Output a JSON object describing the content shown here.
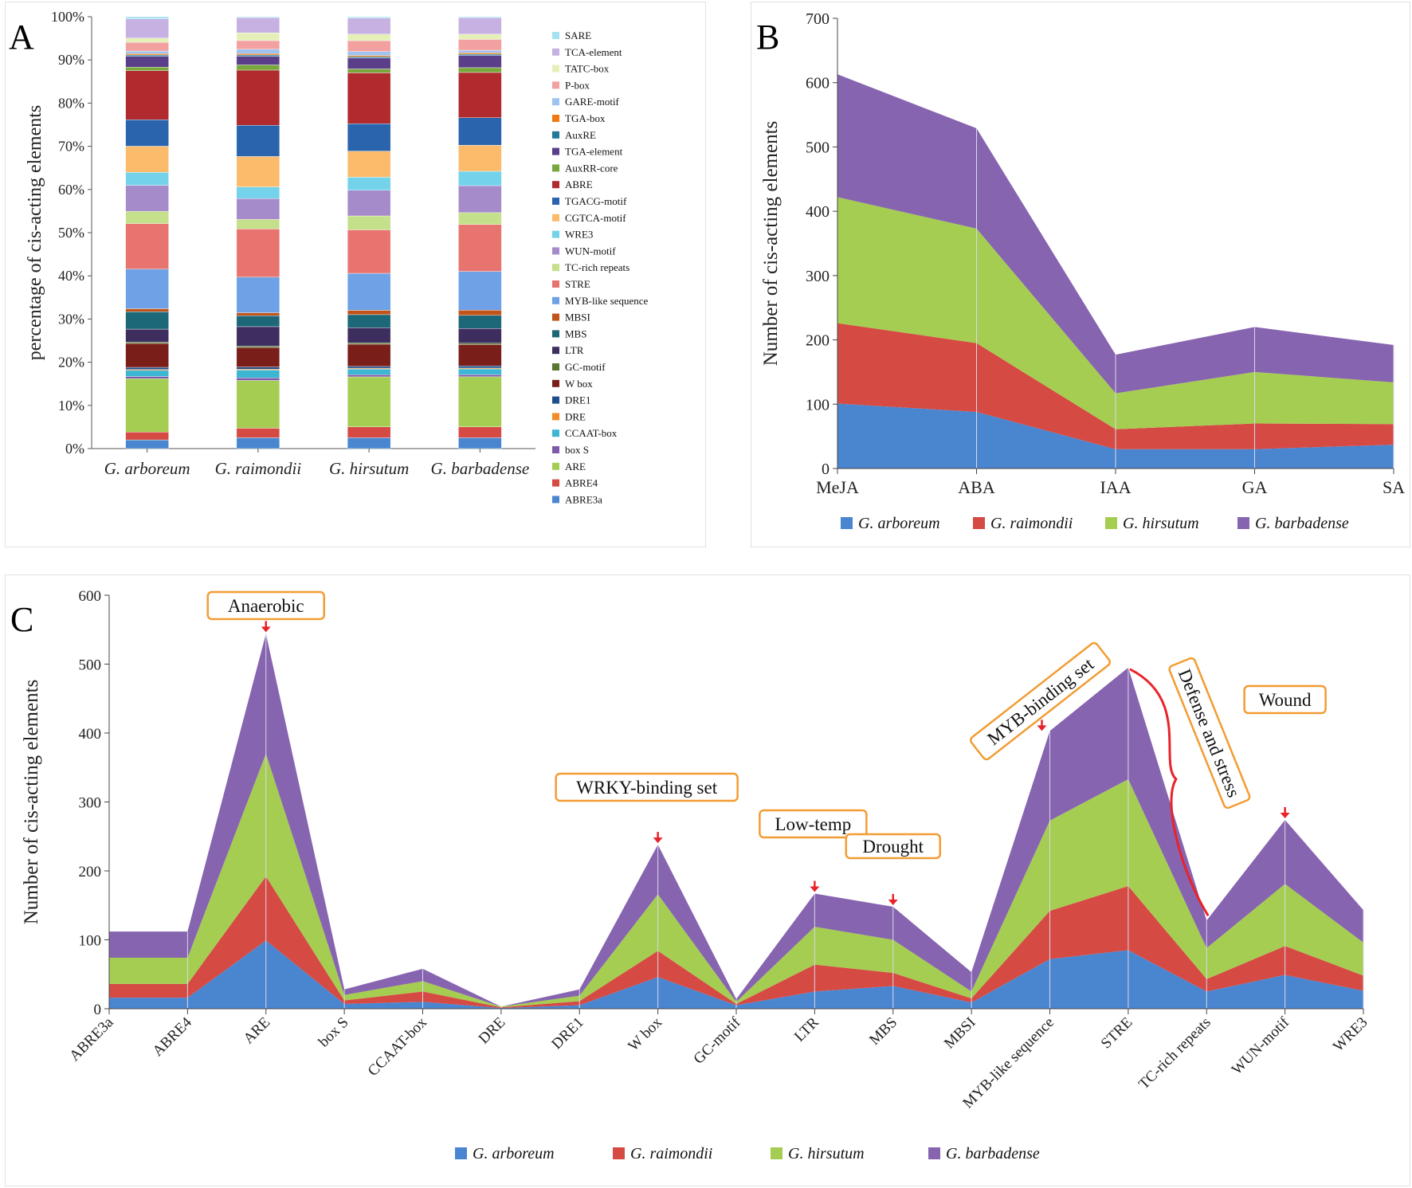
{
  "colors": {
    "g_arboreum": "#4a86d0",
    "g_raimondii": "#d64a44",
    "g_hirsutum": "#a5cd52",
    "g_barbadense": "#8764b0",
    "annotation_box": "#f39c33",
    "arrow": "#e8232a"
  },
  "panel_a": {
    "letter": "A",
    "chart_data": {
      "type": "bar",
      "title": "",
      "ylabel": "percentage of cis-acting elements",
      "xlabel": "",
      "ylim": [
        0,
        100
      ],
      "yticks": [
        "0%",
        "10%",
        "20%",
        "30%",
        "40%",
        "50%",
        "60%",
        "70%",
        "80%",
        "90%",
        "100%"
      ],
      "categories": [
        "G. arboreum",
        "G. raimondii",
        "G. hirsutum",
        "G. barbadense"
      ],
      "legend_position": "right",
      "series": [
        {
          "name": "ABRE3a",
          "color": "#4a86d0",
          "values": [
            2.0,
            2.5,
            2.5,
            2.5
          ]
        },
        {
          "name": "ABRE4",
          "color": "#d64a44",
          "values": [
            1.8,
            2.2,
            2.5,
            2.5
          ]
        },
        {
          "name": "ARE",
          "color": "#a5cd52",
          "values": [
            12.3,
            11.0,
            11.5,
            11.5
          ]
        },
        {
          "name": "box S",
          "color": "#7d5aab",
          "values": [
            0.5,
            0.6,
            0.5,
            0.5
          ]
        },
        {
          "name": "CCAAT-box",
          "color": "#3cb6d3",
          "values": [
            1.4,
            1.8,
            1.3,
            1.3
          ]
        },
        {
          "name": "DRE",
          "color": "#f28d2a",
          "values": [
            0.2,
            0.2,
            0.2,
            0.2
          ]
        },
        {
          "name": "DRE1",
          "color": "#1f4e8a",
          "values": [
            0.5,
            0.5,
            0.4,
            0.5
          ]
        },
        {
          "name": "W box",
          "color": "#7a1e1a",
          "values": [
            5.5,
            4.5,
            5.1,
            4.9
          ]
        },
        {
          "name": "GC-motif",
          "color": "#57782e",
          "values": [
            0.3,
            0.3,
            0.3,
            0.3
          ]
        },
        {
          "name": "LTR",
          "color": "#3e2e60",
          "values": [
            3.0,
            4.5,
            3.5,
            3.4
          ]
        },
        {
          "name": "MBS",
          "color": "#1d6878",
          "values": [
            4.0,
            2.5,
            3.0,
            3.0
          ]
        },
        {
          "name": "MBSI",
          "color": "#c0541a",
          "values": [
            0.7,
            0.7,
            1.0,
            1.2
          ]
        },
        {
          "name": "MYB-like sequence",
          "color": "#6ea1e5",
          "values": [
            9.1,
            8.2,
            8.5,
            8.9
          ]
        },
        {
          "name": "STRE",
          "color": "#e87470",
          "values": [
            10.5,
            11.1,
            10.0,
            10.8
          ]
        },
        {
          "name": "TC-rich repeats",
          "color": "#c4e08b",
          "values": [
            2.8,
            2.2,
            3.2,
            2.7
          ]
        },
        {
          "name": "WUN-motif",
          "color": "#a58bc9",
          "values": [
            6.0,
            4.8,
            5.9,
            6.2
          ]
        },
        {
          "name": "WRE3",
          "color": "#74d3ea",
          "values": [
            3.0,
            2.7,
            3.0,
            3.3
          ]
        },
        {
          "name": "CGTCA-motif",
          "color": "#fbbb6b",
          "values": [
            6.0,
            7.0,
            6.0,
            6.0
          ]
        },
        {
          "name": "TGACG-motif",
          "color": "#2a64ad",
          "values": [
            6.1,
            7.2,
            6.3,
            6.3
          ]
        },
        {
          "name": "ABRE",
          "color": "#b02a2e",
          "values": [
            11.3,
            12.7,
            11.7,
            10.4
          ]
        },
        {
          "name": "AuxRR-core",
          "color": "#78a83c",
          "values": [
            0.8,
            1.2,
            0.9,
            1.1
          ]
        },
        {
          "name": "TGA-element",
          "color": "#5b3e8a",
          "values": [
            2.5,
            2.0,
            2.5,
            2.8
          ]
        },
        {
          "name": "AuxRE",
          "color": "#23789a",
          "values": [
            0.3,
            0.3,
            0.3,
            0.3
          ]
        },
        {
          "name": "TGA-box",
          "color": "#f07a10",
          "values": [
            0.3,
            0.3,
            0.3,
            0.3
          ]
        },
        {
          "name": "GARE-motif",
          "color": "#9dc3f0",
          "values": [
            0.6,
            1.0,
            0.9,
            0.6
          ]
        },
        {
          "name": "P-box",
          "color": "#f2a0a0",
          "values": [
            2.0,
            2.0,
            2.5,
            2.5
          ]
        },
        {
          "name": "TATC-box",
          "color": "#e4f0b8",
          "values": [
            1.0,
            1.8,
            1.5,
            1.2
          ]
        },
        {
          "name": "TCA-element",
          "color": "#c7b1e2",
          "values": [
            4.4,
            3.5,
            3.7,
            3.8
          ]
        },
        {
          "name": "SARE",
          "color": "#a6e2f2",
          "values": [
            0.5,
            0.2,
            0.3,
            0.2
          ]
        }
      ]
    }
  },
  "panel_b": {
    "letter": "B",
    "chart_data": {
      "type": "area",
      "title": "",
      "ylabel": "Number of cis-acting elements",
      "xlabel": "",
      "ylim": [
        0,
        700
      ],
      "yticks": [
        "0",
        "100",
        "200",
        "300",
        "400",
        "500",
        "600",
        "700"
      ],
      "categories": [
        "MeJA",
        "ABA",
        "IAA",
        "GA",
        "SA"
      ],
      "stacked": true,
      "legend_position": "bottom",
      "series": [
        {
          "name": "G. arboreum",
          "values": [
            101,
            88,
            30,
            30,
            37
          ]
        },
        {
          "name": "G. raimondii",
          "values": [
            125,
            107,
            31,
            40,
            32
          ]
        },
        {
          "name": "G. hirsutum",
          "values": [
            196,
            178,
            56,
            80,
            65
          ]
        },
        {
          "name": "G. barbadense",
          "values": [
            191,
            156,
            60,
            70,
            58
          ]
        }
      ]
    }
  },
  "panel_c": {
    "letter": "C",
    "chart_data": {
      "type": "area",
      "title": "",
      "ylabel": "Number of cis-acting elements",
      "xlabel": "",
      "ylim": [
        0,
        600
      ],
      "yticks": [
        "0",
        "100",
        "200",
        "300",
        "400",
        "500",
        "600"
      ],
      "categories": [
        "ABRE3a",
        "ABRE4",
        "ARE",
        "box S",
        "CCAAT-box",
        "DRE",
        "DRE1",
        "W box",
        "GC-motif",
        "LTR",
        "MBS",
        "MBSI",
        "MYB-like sequence",
        "STRE",
        "TC-rich repeats",
        "WUN-motif",
        "WRE3"
      ],
      "stacked": true,
      "legend_position": "bottom",
      "series": [
        {
          "name": "G. arboreum",
          "values": [
            16,
            16,
            99,
            7,
            10,
            1,
            5,
            46,
            5,
            25,
            33,
            9,
            72,
            85,
            25,
            49,
            26
          ]
        },
        {
          "name": "G. raimondii",
          "values": [
            20,
            20,
            93,
            5,
            15,
            1,
            6,
            38,
            2,
            39,
            19,
            6,
            70,
            93,
            18,
            42,
            22
          ]
        },
        {
          "name": "G. hirsutum",
          "values": [
            38,
            38,
            178,
            8,
            15,
            1,
            8,
            82,
            3,
            55,
            48,
            10,
            131,
            155,
            45,
            90,
            48
          ]
        },
        {
          "name": "G. barbadense",
          "values": [
            38,
            38,
            174,
            8,
            18,
            0,
            9,
            72,
            4,
            48,
            48,
            28,
            130,
            162,
            40,
            93,
            47
          ]
        }
      ],
      "annotations": [
        {
          "label": "Anaerobic",
          "category": "ARE"
        },
        {
          "label": "WRKY-binding set",
          "category": "W box"
        },
        {
          "label": "Low-temp",
          "category": "LTR"
        },
        {
          "label": "Drought",
          "category": "MBS"
        },
        {
          "label": "MYB-binding set",
          "category": "MYB-like sequence"
        },
        {
          "label": "Defense and stress",
          "category": "STRE"
        },
        {
          "label": "Wound",
          "category": "WUN-motif"
        }
      ]
    }
  }
}
